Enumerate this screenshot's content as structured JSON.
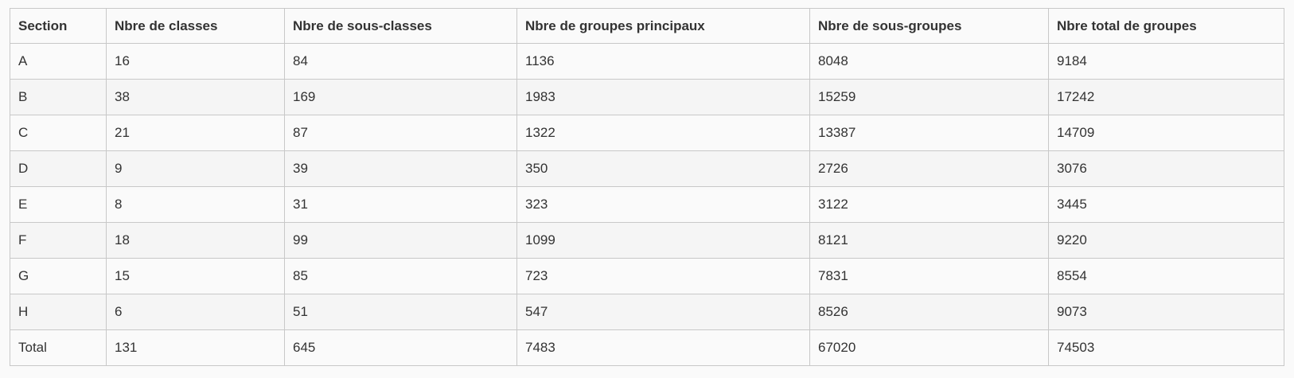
{
  "table": {
    "headers": [
      "Section",
      "Nbre de classes",
      "Nbre de sous-classes",
      "Nbre de groupes principaux",
      "Nbre de sous-groupes",
      "Nbre total de groupes"
    ],
    "rows": [
      [
        "A",
        "16",
        "84",
        "1136",
        "8048",
        "9184"
      ],
      [
        "B",
        "38",
        "169",
        "1983",
        "15259",
        "17242"
      ],
      [
        "C",
        "21",
        "87",
        "1322",
        "13387",
        "14709"
      ],
      [
        "D",
        "9",
        "39",
        "350",
        "2726",
        "3076"
      ],
      [
        "E",
        "8",
        "31",
        "323",
        "3122",
        "3445"
      ],
      [
        "F",
        "18",
        "99",
        "1099",
        "8121",
        "9220"
      ],
      [
        "G",
        "15",
        "85",
        "723",
        "7831",
        "8554"
      ],
      [
        "H",
        "6",
        "51",
        "547",
        "8526",
        "9073"
      ],
      [
        "Total",
        "131",
        "645",
        "7483",
        "67020",
        "74503"
      ]
    ]
  }
}
